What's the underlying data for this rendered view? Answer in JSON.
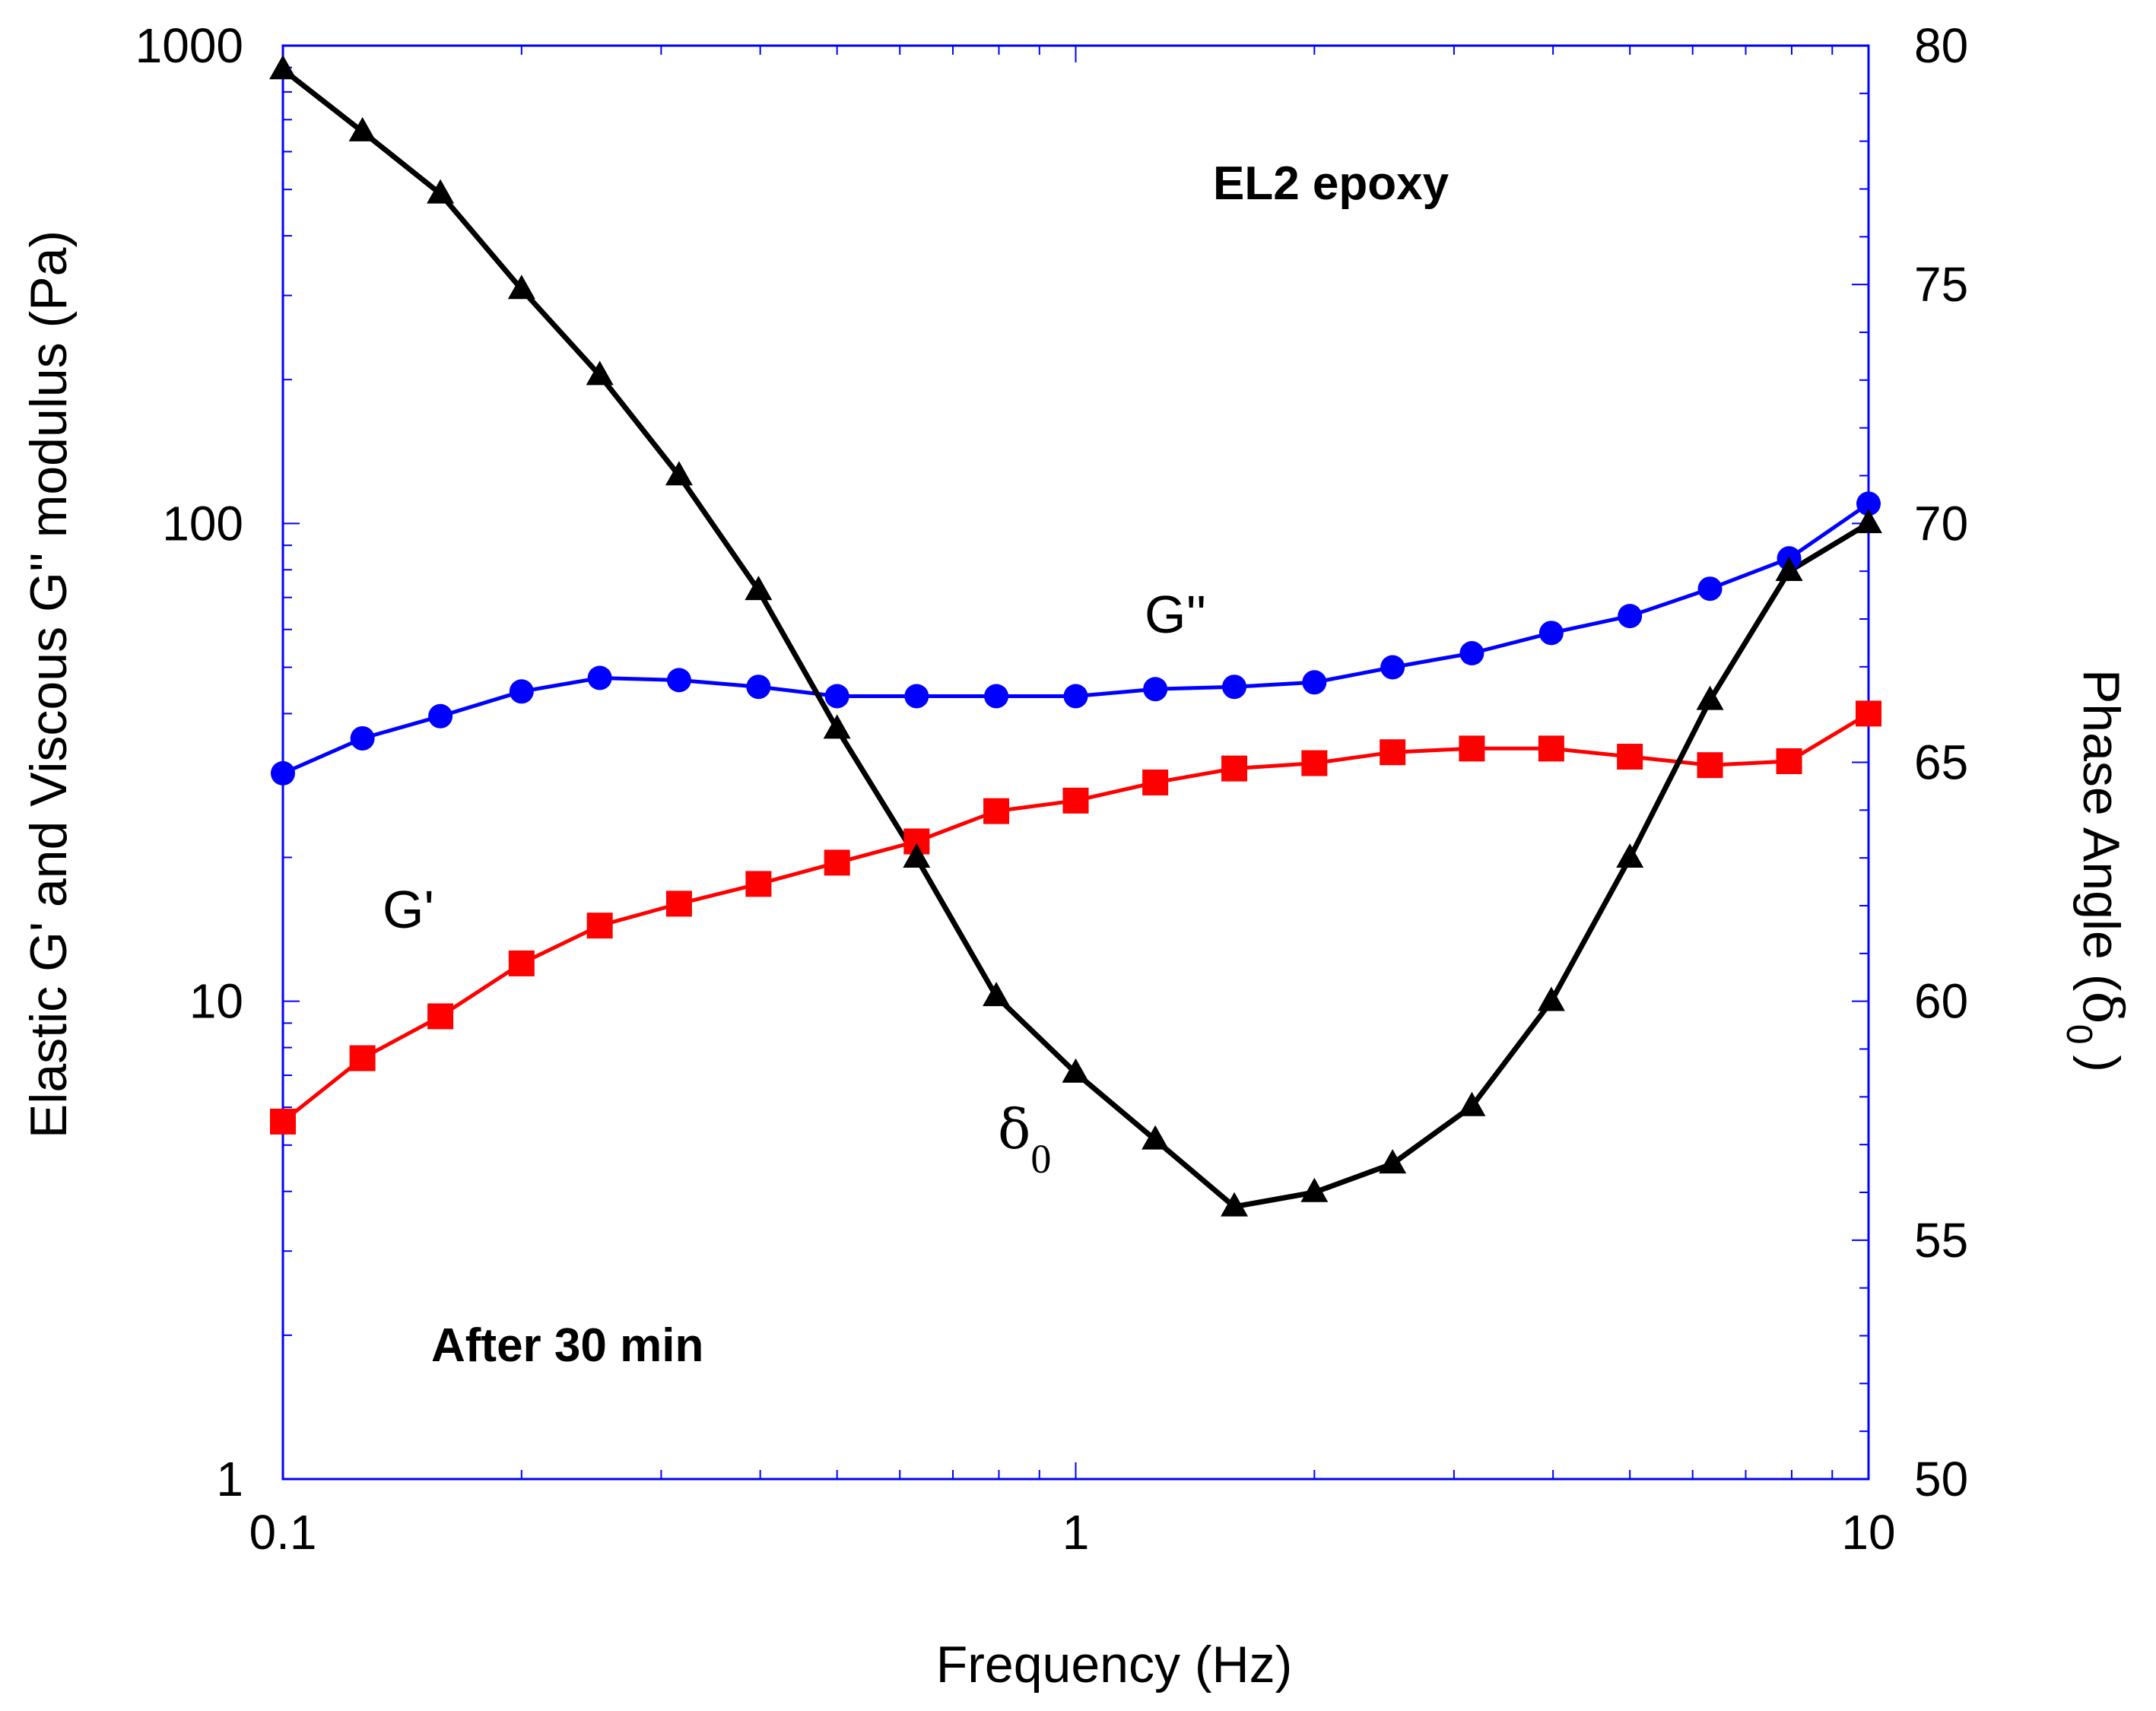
{
  "chart_data": {
    "type": "line",
    "x_axis": {
      "label": "Frequency (Hz)",
      "scale": "log",
      "range": [
        0.1,
        10
      ],
      "tick_labels": [
        "0.1",
        "1",
        "10"
      ],
      "tick_values": [
        0.1,
        1,
        10
      ]
    },
    "y_axis_left": {
      "label": "Elastic G' and Viscous G'' modulus (Pa)",
      "scale": "log",
      "range": [
        1,
        1000
      ],
      "tick_labels": [
        "1",
        "10",
        "100",
        "1000"
      ],
      "tick_values": [
        1,
        10,
        100,
        1000
      ]
    },
    "y_axis_right": {
      "label_main": "Phase Angle (",
      "label_symbol": "δ",
      "label_sub": "0",
      "label_close": ")",
      "scale": "linear",
      "range": [
        50,
        80
      ],
      "tick_labels": [
        "50",
        "55",
        "60",
        "65",
        "70",
        "75",
        "80"
      ],
      "tick_values": [
        50,
        55,
        60,
        65,
        70,
        75,
        80
      ]
    },
    "x": [
      0.1,
      0.126,
      0.158,
      0.2,
      0.251,
      0.316,
      0.398,
      0.5,
      0.63,
      0.794,
      1.0,
      1.26,
      1.585,
      2.0,
      2.51,
      3.16,
      3.98,
      5.0,
      6.31,
      7.94,
      10.0
    ],
    "series": [
      {
        "name": "G''",
        "axis": "left",
        "marker": "circle",
        "color": "#0000ff",
        "values": [
          30,
          35.5,
          39.5,
          44.5,
          47.5,
          47,
          45.5,
          43.5,
          43.5,
          43.5,
          43.5,
          45,
          45.5,
          46.5,
          50,
          53.5,
          59,
          64,
          73,
          84.5,
          110
        ]
      },
      {
        "name": "G'",
        "axis": "left",
        "marker": "square",
        "color": "#ff0000",
        "values": [
          5.6,
          7.6,
          9.3,
          12,
          14.4,
          16,
          17.6,
          19.5,
          21.6,
          25,
          26.3,
          28.7,
          30.7,
          31.5,
          33.2,
          33.8,
          33.8,
          32.5,
          31.2,
          31.8,
          40
        ]
      },
      {
        "name": "δ0",
        "axis": "right",
        "marker": "triangle",
        "color": "#000000",
        "values": [
          79.5,
          78.2,
          76.9,
          74.9,
          73.1,
          71,
          68.6,
          65.7,
          63,
          60.1,
          58.5,
          57.1,
          55.7,
          56,
          56.6,
          57.8,
          60,
          63,
          66.3,
          69,
          70
        ]
      }
    ],
    "annotations": {
      "title_in_plot": "EL2 epoxy",
      "time_note": "After 30 min",
      "label_g2": "G''",
      "label_g1": "G'",
      "label_delta_symbol": "δ",
      "label_delta_sub": "0"
    }
  }
}
